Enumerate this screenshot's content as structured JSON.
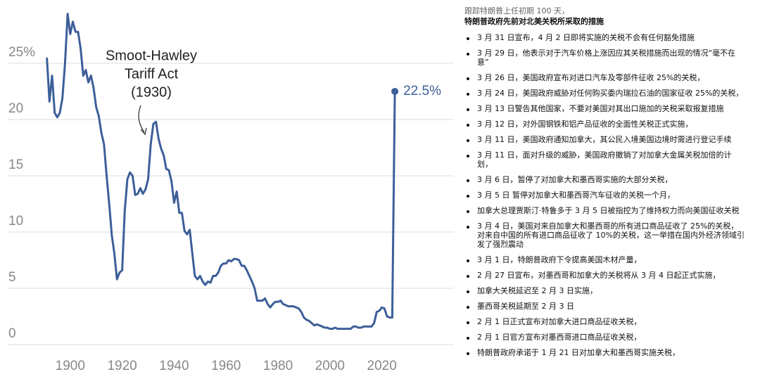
{
  "chart_data": {
    "type": "line",
    "annotation": [
      "Smoot-Hawley",
      "Tariff Act",
      "(1930)"
    ],
    "end_label": "22.5%",
    "color": "#3d5f99",
    "grid": true,
    "xlim": [
      1880,
      2035
    ],
    "xticks": [
      1900,
      1920,
      1940,
      1960,
      1980,
      2000,
      2020
    ],
    "ylim": [
      0,
      30
    ],
    "yticks": [
      0,
      5,
      10,
      15,
      20,
      {
        "value": 25,
        "label": "25%"
      }
    ],
    "x": [
      1891,
      1892,
      1893,
      1894,
      1895,
      1896,
      1897,
      1898,
      1899,
      1900,
      1901,
      1902,
      1903,
      1904,
      1905,
      1906,
      1907,
      1908,
      1909,
      1910,
      1911,
      1912,
      1913,
      1914,
      1915,
      1916,
      1917,
      1918,
      1919,
      1920,
      1921,
      1922,
      1923,
      1924,
      1925,
      1926,
      1927,
      1928,
      1929,
      1930,
      1931,
      1932,
      1933,
      1934,
      1935,
      1936,
      1937,
      1938,
      1939,
      1940,
      1941,
      1942,
      1943,
      1944,
      1945,
      1946,
      1947,
      1948,
      1949,
      1950,
      1951,
      1952,
      1953,
      1954,
      1955,
      1956,
      1957,
      1958,
      1959,
      1960,
      1961,
      1962,
      1963,
      1964,
      1965,
      1966,
      1967,
      1968,
      1969,
      1970,
      1971,
      1972,
      1973,
      1974,
      1975,
      1976,
      1977,
      1978,
      1979,
      1980,
      1981,
      1982,
      1983,
      1984,
      1985,
      1986,
      1987,
      1988,
      1989,
      1990,
      1991,
      1992,
      1993,
      1994,
      1995,
      1996,
      1997,
      1998,
      1999,
      2000,
      2001,
      2002,
      2003,
      2004,
      2005,
      2006,
      2007,
      2008,
      2009,
      2010,
      2011,
      2012,
      2013,
      2014,
      2015,
      2016,
      2017,
      2018,
      2019,
      2020,
      2021,
      2022,
      2023,
      2024,
      2025
    ],
    "values": [
      25.5,
      21.6,
      23.9,
      20.6,
      20.2,
      20.6,
      21.9,
      25.0,
      29.4,
      27.6,
      28.7,
      27.8,
      27.8,
      26.3,
      23.9,
      24.4,
      23.3,
      23.9,
      22.8,
      21.1,
      20.3,
      18.8,
      17.8,
      15.0,
      12.5,
      9.7,
      8.1,
      5.8,
      6.4,
      6.6,
      11.9,
      14.7,
      15.3,
      15.0,
      13.3,
      13.4,
      13.9,
      13.4,
      13.8,
      14.7,
      17.8,
      19.6,
      19.8,
      18.3,
      17.4,
      16.8,
      15.6,
      15.5,
      14.5,
      12.6,
      13.6,
      11.7,
      11.7,
      10.1,
      9.8,
      10.2,
      8.1,
      6.1,
      5.8,
      6.1,
      5.6,
      5.3,
      5.6,
      5.5,
      6.1,
      6.1,
      6.4,
      7.0,
      7.2,
      7.2,
      7.5,
      7.4,
      7.6,
      7.6,
      7.5,
      7.0,
      7.0,
      6.6,
      6.1,
      5.6,
      5.0,
      3.9,
      3.9,
      3.9,
      4.1,
      3.6,
      3.3,
      3.6,
      3.8,
      3.8,
      3.9,
      3.6,
      3.5,
      3.4,
      3.4,
      3.4,
      3.3,
      3.2,
      2.9,
      2.4,
      2.2,
      2.1,
      1.9,
      1.7,
      1.8,
      1.7,
      1.6,
      1.5,
      1.5,
      1.4,
      1.4,
      1.5,
      1.4,
      1.4,
      1.4,
      1.4,
      1.4,
      1.4,
      1.6,
      1.6,
      1.5,
      1.5,
      1.6,
      1.6,
      1.6,
      1.6,
      1.9,
      2.9,
      3.0,
      3.3,
      3.2,
      2.5,
      2.4,
      2.4,
      22.5
    ]
  },
  "list": {
    "subtitle": "跟踪特朗普上任初期 100 天，",
    "title": "特朗普政府先前对北美关税所采取的措施",
    "items": [
      "3 月 31 日宣布，4 月 2 日即将实施的关税不会有任何豁免措施",
      "3 月 29 日，他表示对于汽车价格上涨因应其关税措施而出现的情况“毫不在意”",
      "3 月 26 日，美国政府宣布对进口汽车及零部件征收 25%的关税，",
      "3 月 24 日，美国政府威胁对任何购买委内瑞拉石油的国家征收 25%的关税，",
      "3 月 13 日警告其他国家，不要对美国对其出口施加的关税采取报复措施",
      "3 月 12 日，对外国钢铁和铝产品征收的全面性关税正式实施，",
      "3 月 11 日，美国政府通知加拿大，其公民入境美国边境时需进行登记手续",
      "3 月 11 日，面对升级的威胁，美国政府撤销了对加拿大金属关税加倍的计划，",
      "3 月 6 日，暂停了对加拿大和墨西哥实施的大部分关税，",
      "3 月 5 日 暂停对加拿大和墨西哥汽车征收的关税一个月，",
      "加拿大总理贾斯汀·特鲁多于 3 月 5 日被指控为了维持权力而向美国征收关税",
      "3 月 4 日，美国对来自加拿大和墨西哥的所有进口商品征收了 25%的关税，对来自中国的所有进口商品征收了 10%的关税，这一举措在国内外经济领域引发了强烈震动",
      "3 月 1 日，特朗普政府下令提高美国木材产量，",
      "2 月 27 日宣布，对墨西哥和加拿大的关税将从 3 月 4 日起正式实施，",
      "加拿大关税延迟至 2 月 3 日实施，",
      "墨西哥关税延期至 2 月 3 日",
      "2 月 1 日正式宣布对加拿大进口商品征收关税，",
      "2 月 1 日官方宣布对墨西哥进口商品征收关税，",
      "特朗普政府承诺于 1 月 21 日对加拿大和墨西哥实施关税，"
    ]
  }
}
